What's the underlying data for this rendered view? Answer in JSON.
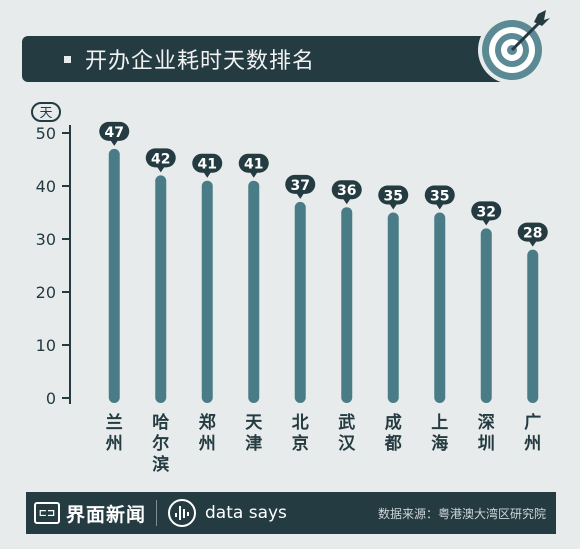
{
  "header": {
    "title": "开办企业耗时天数排名"
  },
  "footer": {
    "brand": "界面新闻",
    "subbrand": "data says",
    "source": "数据来源：粤港澳大湾区研究院"
  },
  "colors": {
    "bar": "#4a7c88",
    "header_bg": "#243b42",
    "label_bg": "#243b42"
  },
  "chart_data": {
    "type": "bar",
    "ylabel": "天",
    "ylim": [
      0,
      50
    ],
    "yticks": [
      0,
      10,
      20,
      30,
      40,
      50
    ],
    "categories": [
      "兰州",
      "哈尔滨",
      "郑州",
      "天津",
      "北京",
      "武汉",
      "成都",
      "上海",
      "深圳",
      "广州"
    ],
    "values": [
      47,
      42,
      41,
      41,
      37,
      36,
      35,
      35,
      32,
      28
    ]
  }
}
